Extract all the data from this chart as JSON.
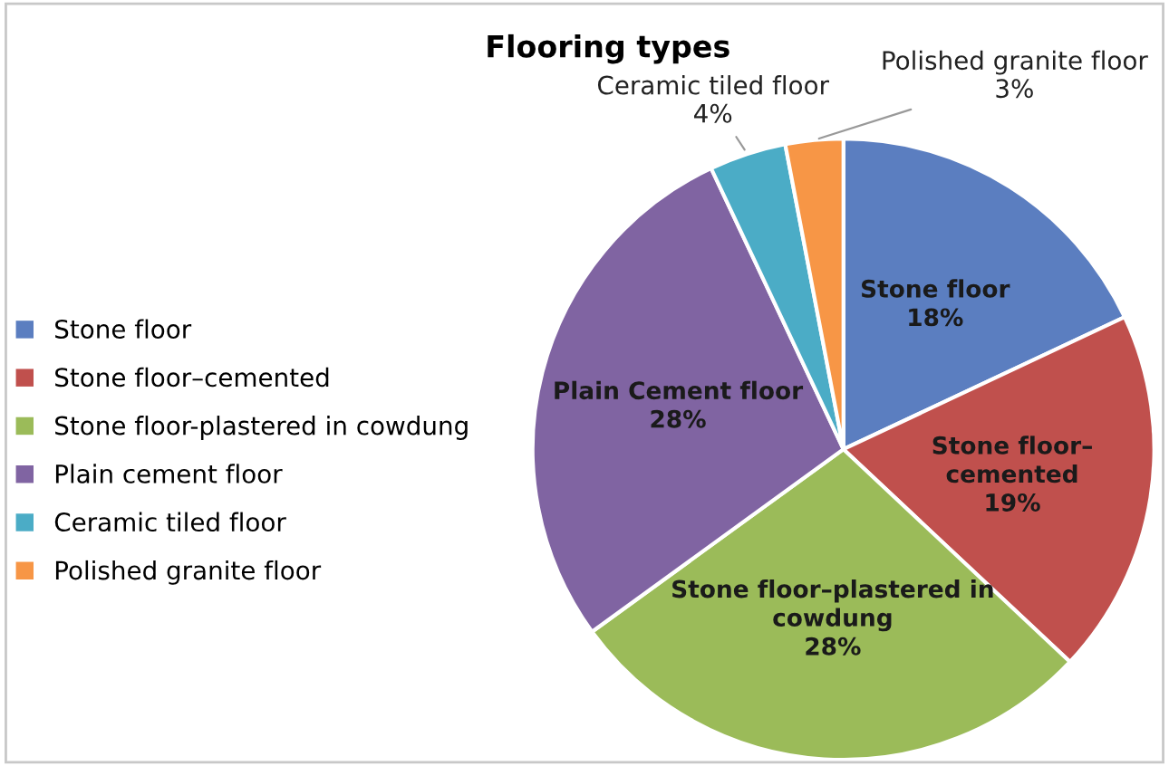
{
  "chart_data": {
    "type": "pie",
    "title": "Flooring types",
    "categories": [
      "Stone floor",
      "Stone floor–cemented",
      "Stone floor-plastered in cowdung",
      "Plain cement floor",
      "Ceramic tiled floor",
      "Polished granite floor"
    ],
    "values": [
      18,
      19,
      28,
      28,
      4,
      3
    ],
    "colors": [
      "#5b7ec0",
      "#c0504d",
      "#9bbb59",
      "#8064a2",
      "#4bacc6",
      "#f79646"
    ],
    "value_labels": [
      "Stone floor\n18%",
      "Stone floor–\ncemented\n19%",
      "Stone floor–plastered in\ncowdung\n28%",
      "Plain Cement floor\n28%",
      "Ceramic tiled floor\n4%",
      "Polished granite floor\n3%"
    ],
    "legend": "left"
  }
}
